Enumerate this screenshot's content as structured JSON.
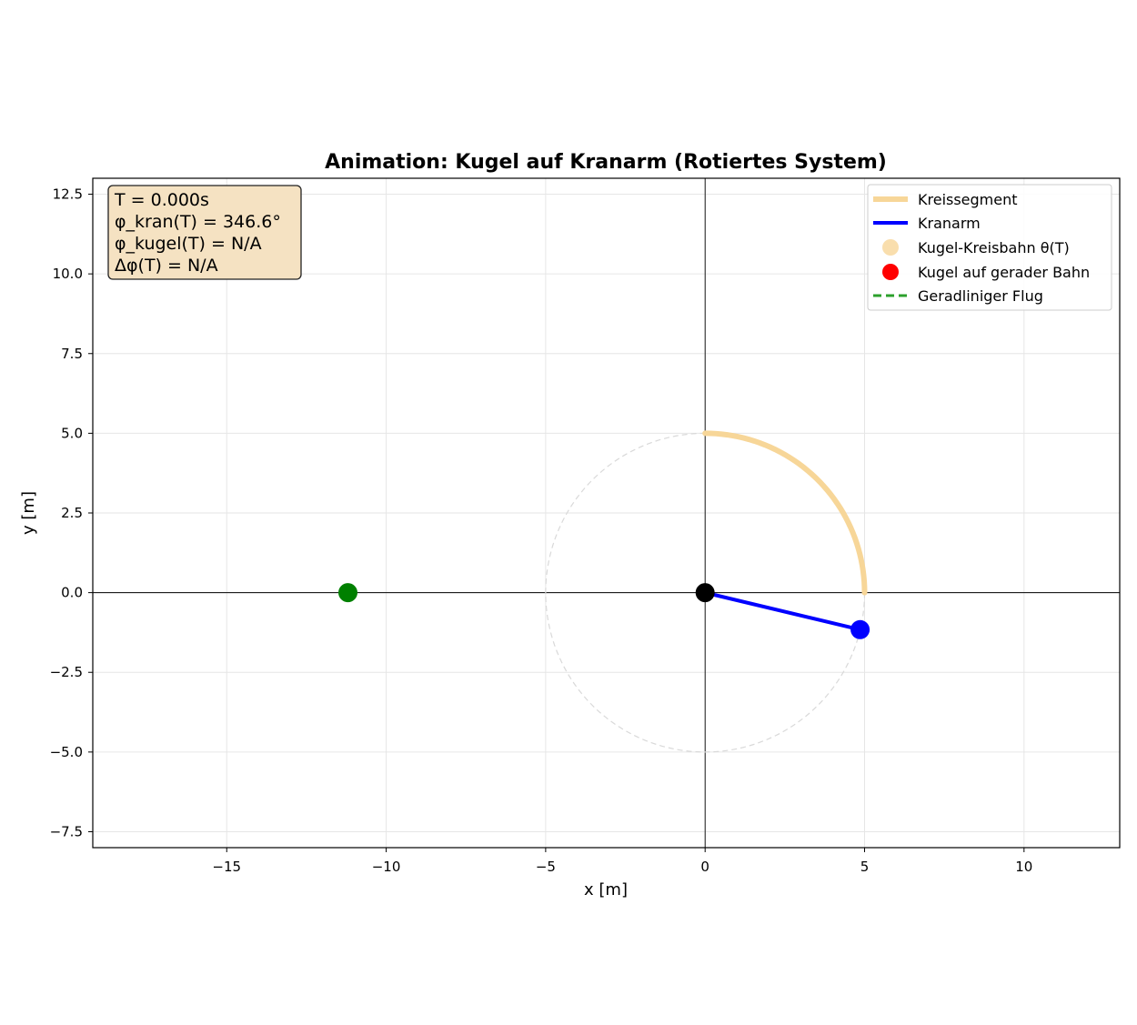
{
  "chart_data": {
    "type": "line",
    "title": "Animation: Kugel auf Kranarm (Rotiertes System)",
    "xlabel": "x [m]",
    "ylabel": "y [m]",
    "xlim": [
      -19.2,
      13.0
    ],
    "ylim": [
      -8.0,
      13.0
    ],
    "x_ticks": [
      -15,
      -10,
      -5,
      0,
      5,
      10
    ],
    "x_tick_labels": [
      "−15",
      "−10",
      "−5",
      "0",
      "5",
      "10"
    ],
    "y_ticks": [
      12.5,
      10.0,
      7.5,
      5.0,
      2.5,
      0.0,
      -2.5,
      -5.0,
      -7.5
    ],
    "y_tick_labels": [
      "12.5",
      "10.0",
      "7.5",
      "5.0",
      "2.5",
      "0.0",
      "−2.5",
      "−5.0",
      "−7.5"
    ],
    "grid": true,
    "legend_position": "top-right",
    "reference_circle": {
      "center": [
        0,
        0
      ],
      "radius": 5,
      "style": "dashed",
      "color": "#d9d9d9"
    },
    "series": [
      {
        "name": "Kreissegment",
        "kind": "arc",
        "center": [
          0,
          0
        ],
        "radius": 5,
        "start_deg": 0,
        "end_deg": 90,
        "color": "#f7d698"
      },
      {
        "name": "Kranarm",
        "kind": "line",
        "points": [
          [
            0,
            0
          ],
          [
            4.86,
            -1.16
          ]
        ],
        "color": "#0000ff"
      },
      {
        "name": "Kugel-Kreisbahn θ(T)",
        "kind": "marker",
        "points": [],
        "color": "#f7d698"
      },
      {
        "name": "Kugel auf gerader Bahn",
        "kind": "marker",
        "points": [],
        "color": "#ff0000"
      },
      {
        "name": "Geradliniger Flug",
        "kind": "dashed-line",
        "points": [],
        "color": "#2ca02c"
      }
    ],
    "points": [
      {
        "label": "pivot",
        "x": 0,
        "y": 0,
        "color": "#000000"
      },
      {
        "label": "arm-tip",
        "x": 4.86,
        "y": -1.16,
        "color": "#0000ff"
      },
      {
        "label": "ball",
        "x": -11.2,
        "y": 0,
        "color": "#008000"
      }
    ],
    "info_box": {
      "lines": [
        "T = 0.000s",
        "φ_kran(T) = 346.6°",
        "φ_kugel(T) = N/A",
        "Δφ(T) = N/A"
      ],
      "background": "#f5e2c2"
    }
  }
}
